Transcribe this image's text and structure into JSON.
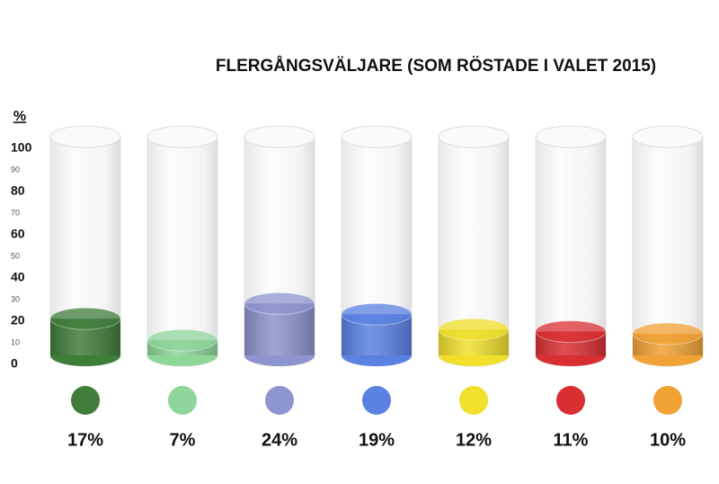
{
  "chart_data": {
    "type": "cylinder",
    "title": "FLERGÅNGSVÄLJARE (SOM RÖSTADE I VALET 2015)",
    "y_label": "%",
    "categories": [
      null,
      null,
      null,
      null,
      null,
      null,
      null
    ],
    "values": [
      17,
      7,
      24,
      19,
      12,
      11,
      10
    ],
    "value_labels": [
      "17%",
      "7%",
      "24%",
      "19%",
      "12%",
      "11%",
      "10%"
    ],
    "colors": [
      "#3f7d3a",
      "#8fd69b",
      "#8d95cf",
      "#5a82e2",
      "#f0e02c",
      "#d92f33",
      "#f0a234"
    ],
    "ylim": [
      0,
      100
    ],
    "yticks": [
      0,
      10,
      20,
      30,
      40,
      50,
      60,
      70,
      80,
      90,
      100
    ]
  }
}
